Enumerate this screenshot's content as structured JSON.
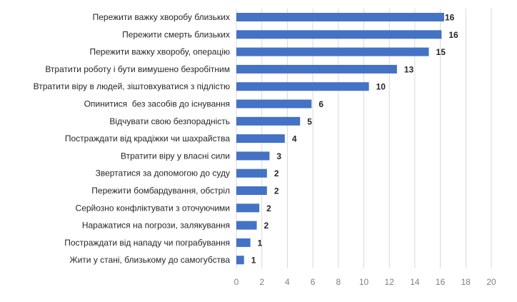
{
  "chart_data": {
    "type": "bar",
    "orientation": "horizontal",
    "title": "",
    "xlabel": "",
    "ylabel": "",
    "xlim": [
      0,
      20
    ],
    "xticks": [
      0,
      2,
      4,
      6,
      8,
      10,
      12,
      14,
      16,
      18,
      20
    ],
    "grid": true,
    "bar_color": "#4472C4",
    "categories": [
      "Пережити важку хворобу близьких",
      "Пережити смерть близьких",
      "Пережити важку хворобу, операцію",
      "Втратити роботу і бути вимушено безробітним",
      "Втратити віру в людей, зіштовхуватися з підлістю",
      "Опинитися  без засобів до існування",
      "Відчувати свою безпорадність",
      "Постраждати від крадіжки чи шахрайства",
      "Втратити віру у власні сили",
      "Звертатися за допомогою до суду",
      "Пережити бомбардування, обстріл",
      "Серйозно конфліктувати з оточуючими",
      "Наражатися на погрози, залякування",
      "Постраждати від нападу чи пограбування",
      "Жити у стані, близькому до самогубства"
    ],
    "values": [
      16.3,
      16.1,
      15.1,
      12.6,
      10.4,
      5.9,
      5.0,
      3.8,
      2.6,
      2.4,
      2.4,
      1.8,
      1.6,
      1.1,
      0.6
    ],
    "data_labels": [
      "16",
      "16",
      "15",
      "13",
      "10",
      "6",
      "5",
      "4",
      "3",
      "2",
      "2",
      "2",
      "2",
      "1",
      "1"
    ]
  }
}
